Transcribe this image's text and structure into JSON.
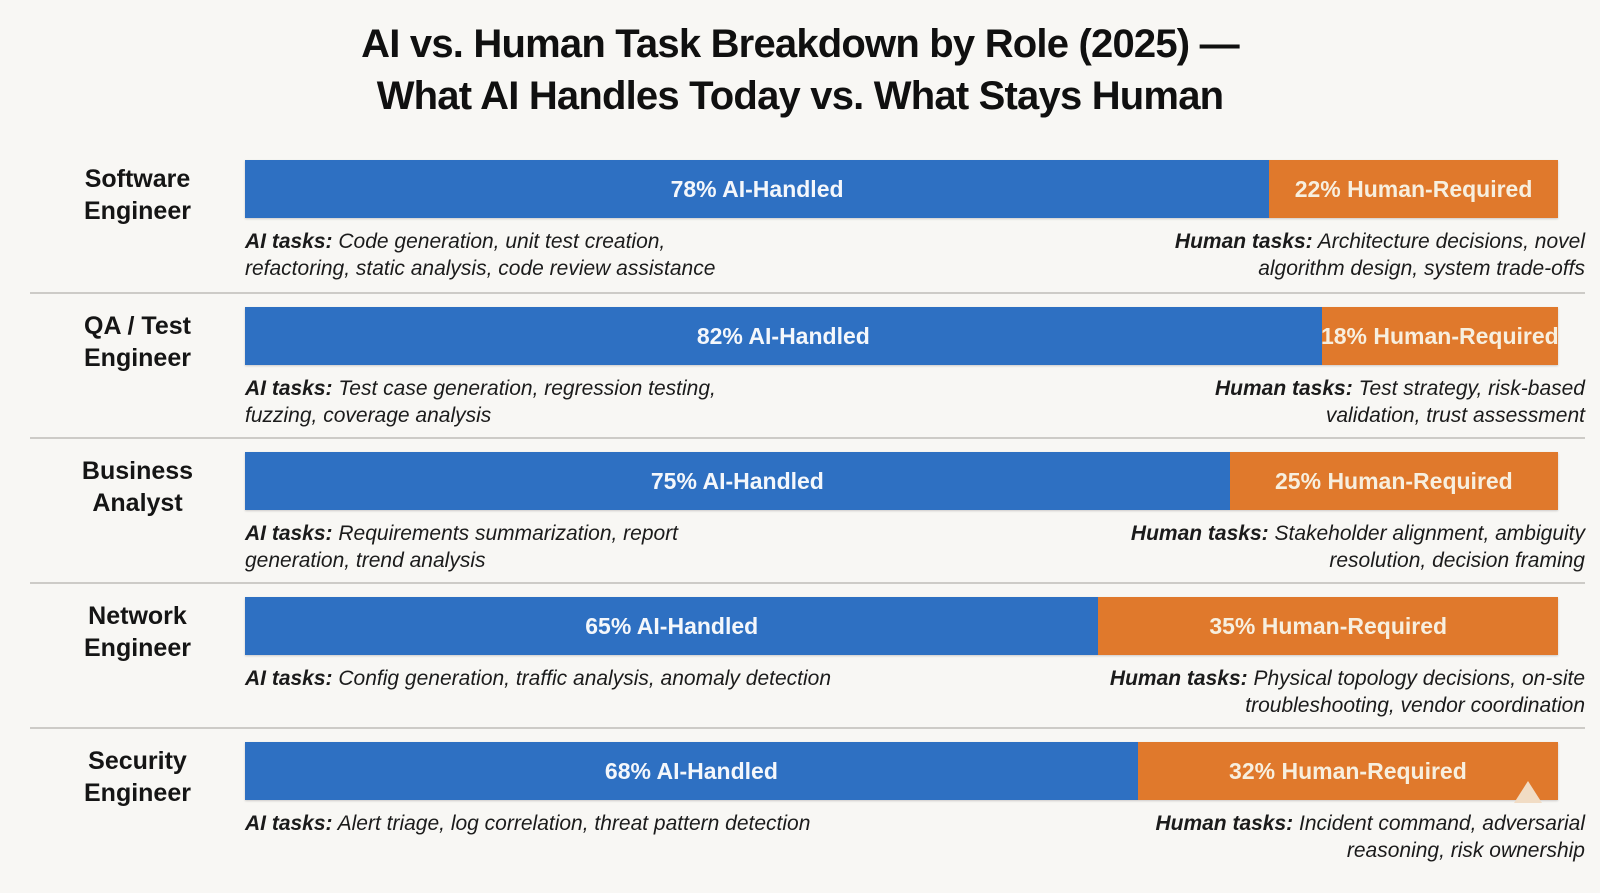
{
  "title": {
    "line1": "AI vs. Human Task Breakdown by Role (2025) —",
    "line2": "What AI Handles Today vs. What Stays Human"
  },
  "colors": {
    "ai_bar": "#2E70C2",
    "human_bar": "#E0792C",
    "ai_label_text": "#F4F7FB",
    "human_label_text": "#F7EFDF",
    "background": "#F8F7F4",
    "divider": "#CDCBC7",
    "title_text": "#101010",
    "watermark": "#F1DCC4"
  },
  "rows": [
    {
      "role_line1": "Software",
      "role_line2": "Engineer",
      "ai_pct": 78,
      "human_pct": 22,
      "ai_bar_label": "78% AI-Handled",
      "human_bar_label": "22% Human-Required",
      "ai_tasks_prefix": "AI tasks:",
      "ai_tasks": "Code generation, unit test creation,\nrefactoring, static analysis, code review assistance",
      "human_tasks_prefix": "Human tasks:",
      "human_tasks": "Architecture decisions, novel\nalgorithm design, system trade-offs",
      "watermark": false
    },
    {
      "role_line1": "QA / Test",
      "role_line2": "Engineer",
      "ai_pct": 82,
      "human_pct": 18,
      "ai_bar_label": "82% AI-Handled",
      "human_bar_label": "18% Human-Required",
      "ai_tasks_prefix": "AI tasks:",
      "ai_tasks": "Test case generation, regression testing,\nfuzzing, coverage analysis",
      "human_tasks_prefix": "Human tasks:",
      "human_tasks": "Test strategy, risk-based\nvalidation, trust assessment",
      "watermark": false
    },
    {
      "role_line1": "Business",
      "role_line2": "Analyst",
      "ai_pct": 75,
      "human_pct": 25,
      "ai_bar_label": "75% AI-Handled",
      "human_bar_label": "25% Human-Required",
      "ai_tasks_prefix": "AI tasks:",
      "ai_tasks": "Requirements summarization, report\ngeneration, trend analysis",
      "human_tasks_prefix": "Human tasks:",
      "human_tasks": "Stakeholder alignment, ambiguity\nresolution, decision framing",
      "watermark": false
    },
    {
      "role_line1": "Network",
      "role_line2": "Engineer",
      "ai_pct": 65,
      "human_pct": 35,
      "ai_bar_label": "65% AI-Handled",
      "human_bar_label": "35% Human-Required",
      "ai_tasks_prefix": "AI tasks:",
      "ai_tasks": "Config generation, traffic analysis, anomaly detection",
      "human_tasks_prefix": "Human tasks:",
      "human_tasks": "Physical topology decisions, on-site\ntroubleshooting, vendor coordination",
      "watermark": false
    },
    {
      "role_line1": "Security",
      "role_line2": "Engineer",
      "ai_pct": 68,
      "human_pct": 32,
      "ai_bar_label": "68% AI-Handled",
      "human_bar_label": "32% Human-Required",
      "ai_tasks_prefix": "AI tasks:",
      "ai_tasks": "Alert triage, log correlation, threat pattern detection",
      "human_tasks_prefix": "Human tasks:",
      "human_tasks": "Incident command, adversarial\nreasoning, risk ownership",
      "watermark": true
    }
  ],
  "chart_data": {
    "type": "bar",
    "orientation": "horizontal-stacked",
    "title": "AI vs. Human Task Breakdown by Role (2025) — What AI Handles Today vs. What Stays Human",
    "categories": [
      "Software Engineer",
      "QA / Test Engineer",
      "Business Analyst",
      "Network Engineer",
      "Security Engineer"
    ],
    "series": [
      {
        "name": "AI-Handled",
        "color": "#2E70C2",
        "values": [
          78,
          82,
          75,
          65,
          68
        ]
      },
      {
        "name": "Human-Required",
        "color": "#E0792C",
        "values": [
          22,
          18,
          25,
          35,
          32
        ]
      }
    ],
    "unit": "%",
    "xlim": [
      0,
      100
    ],
    "grid": false,
    "legend_position": "in-bar-labels",
    "annotations": {
      "ai_tasks": [
        "Code generation, unit test creation, refactoring, static analysis, code review assistance",
        "Test case generation, regression testing, fuzzing, coverage analysis",
        "Requirements summarization, report generation, trend analysis",
        "Config generation, traffic analysis, anomaly detection",
        "Alert triage, log correlation, threat pattern detection"
      ],
      "human_tasks": [
        "Architecture decisions, novel algorithm design, system trade-offs",
        "Test strategy, risk-based validation, trust assessment",
        "Stakeholder alignment, ambiguity resolution, decision framing",
        "Physical topology decisions, on-site troubleshooting, vendor coordination",
        "Incident command, adversarial reasoning, risk ownership"
      ]
    }
  }
}
